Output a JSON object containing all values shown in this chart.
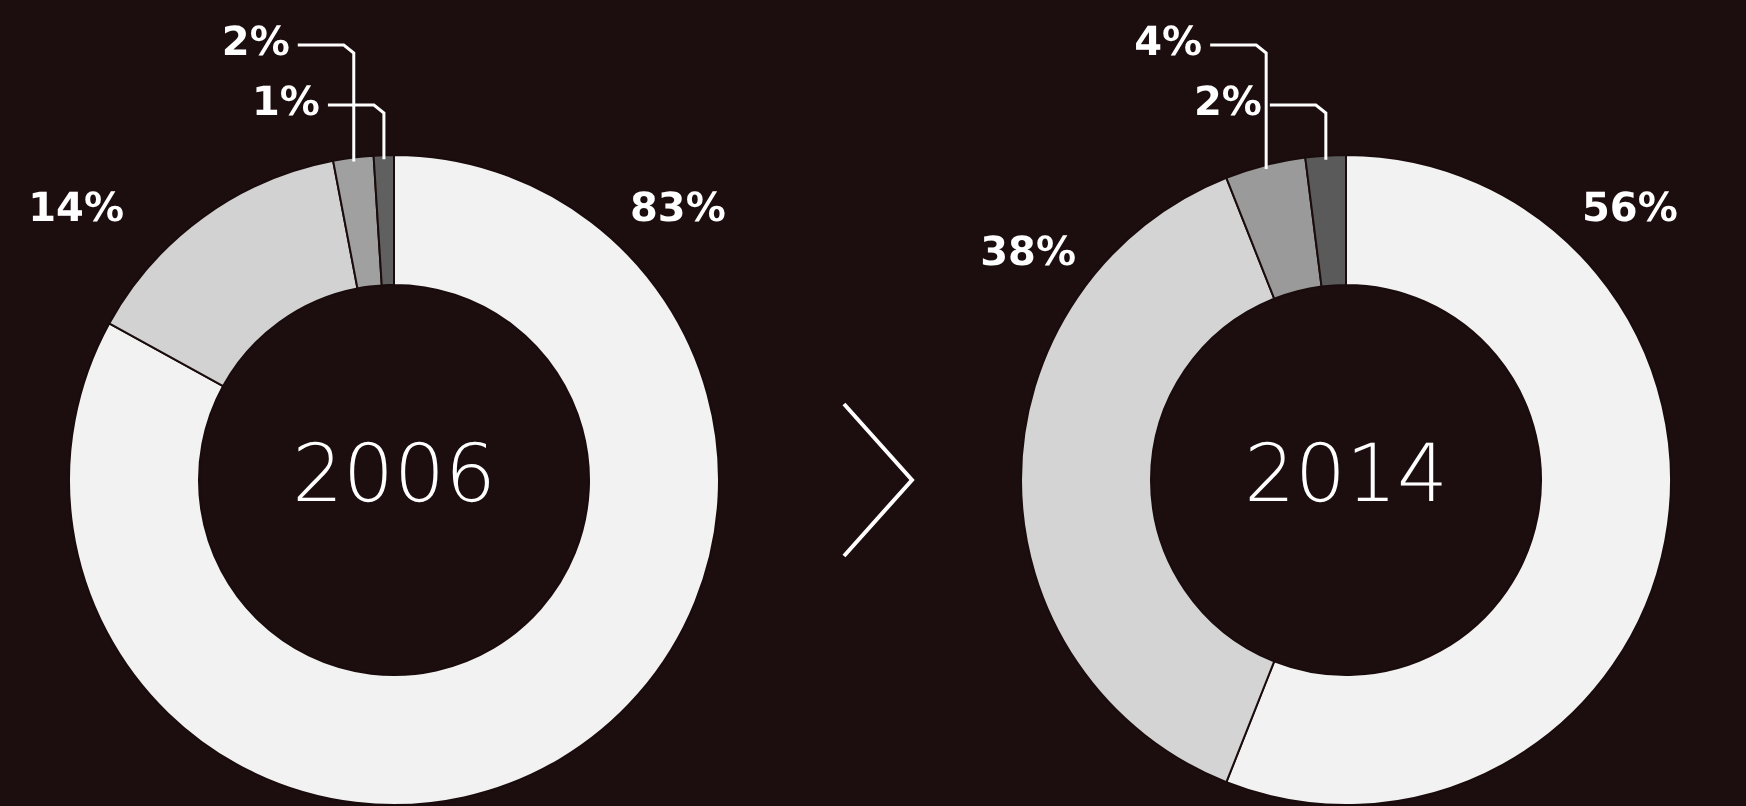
{
  "chart_data": [
    {
      "type": "donut",
      "title": "2006",
      "categories": [
        null,
        null,
        null,
        null
      ],
      "values": [
        83,
        14,
        2,
        1
      ],
      "colors": [
        "#f2f2f2",
        "#d2d2d2",
        "#a0a0a0",
        "#606060"
      ],
      "value_labels": [
        "83%",
        "14%",
        "2%",
        "1%"
      ]
    },
    {
      "type": "donut",
      "title": "2014",
      "categories": [
        null,
        null,
        null,
        null
      ],
      "values": [
        56,
        38,
        4,
        2
      ],
      "colors": [
        "#f2f2f2",
        "#d4d4d4",
        "#9a9a9a",
        "#5a5a5a"
      ],
      "value_labels": [
        "56%",
        "38%",
        "4%",
        "2%"
      ]
    }
  ]
}
